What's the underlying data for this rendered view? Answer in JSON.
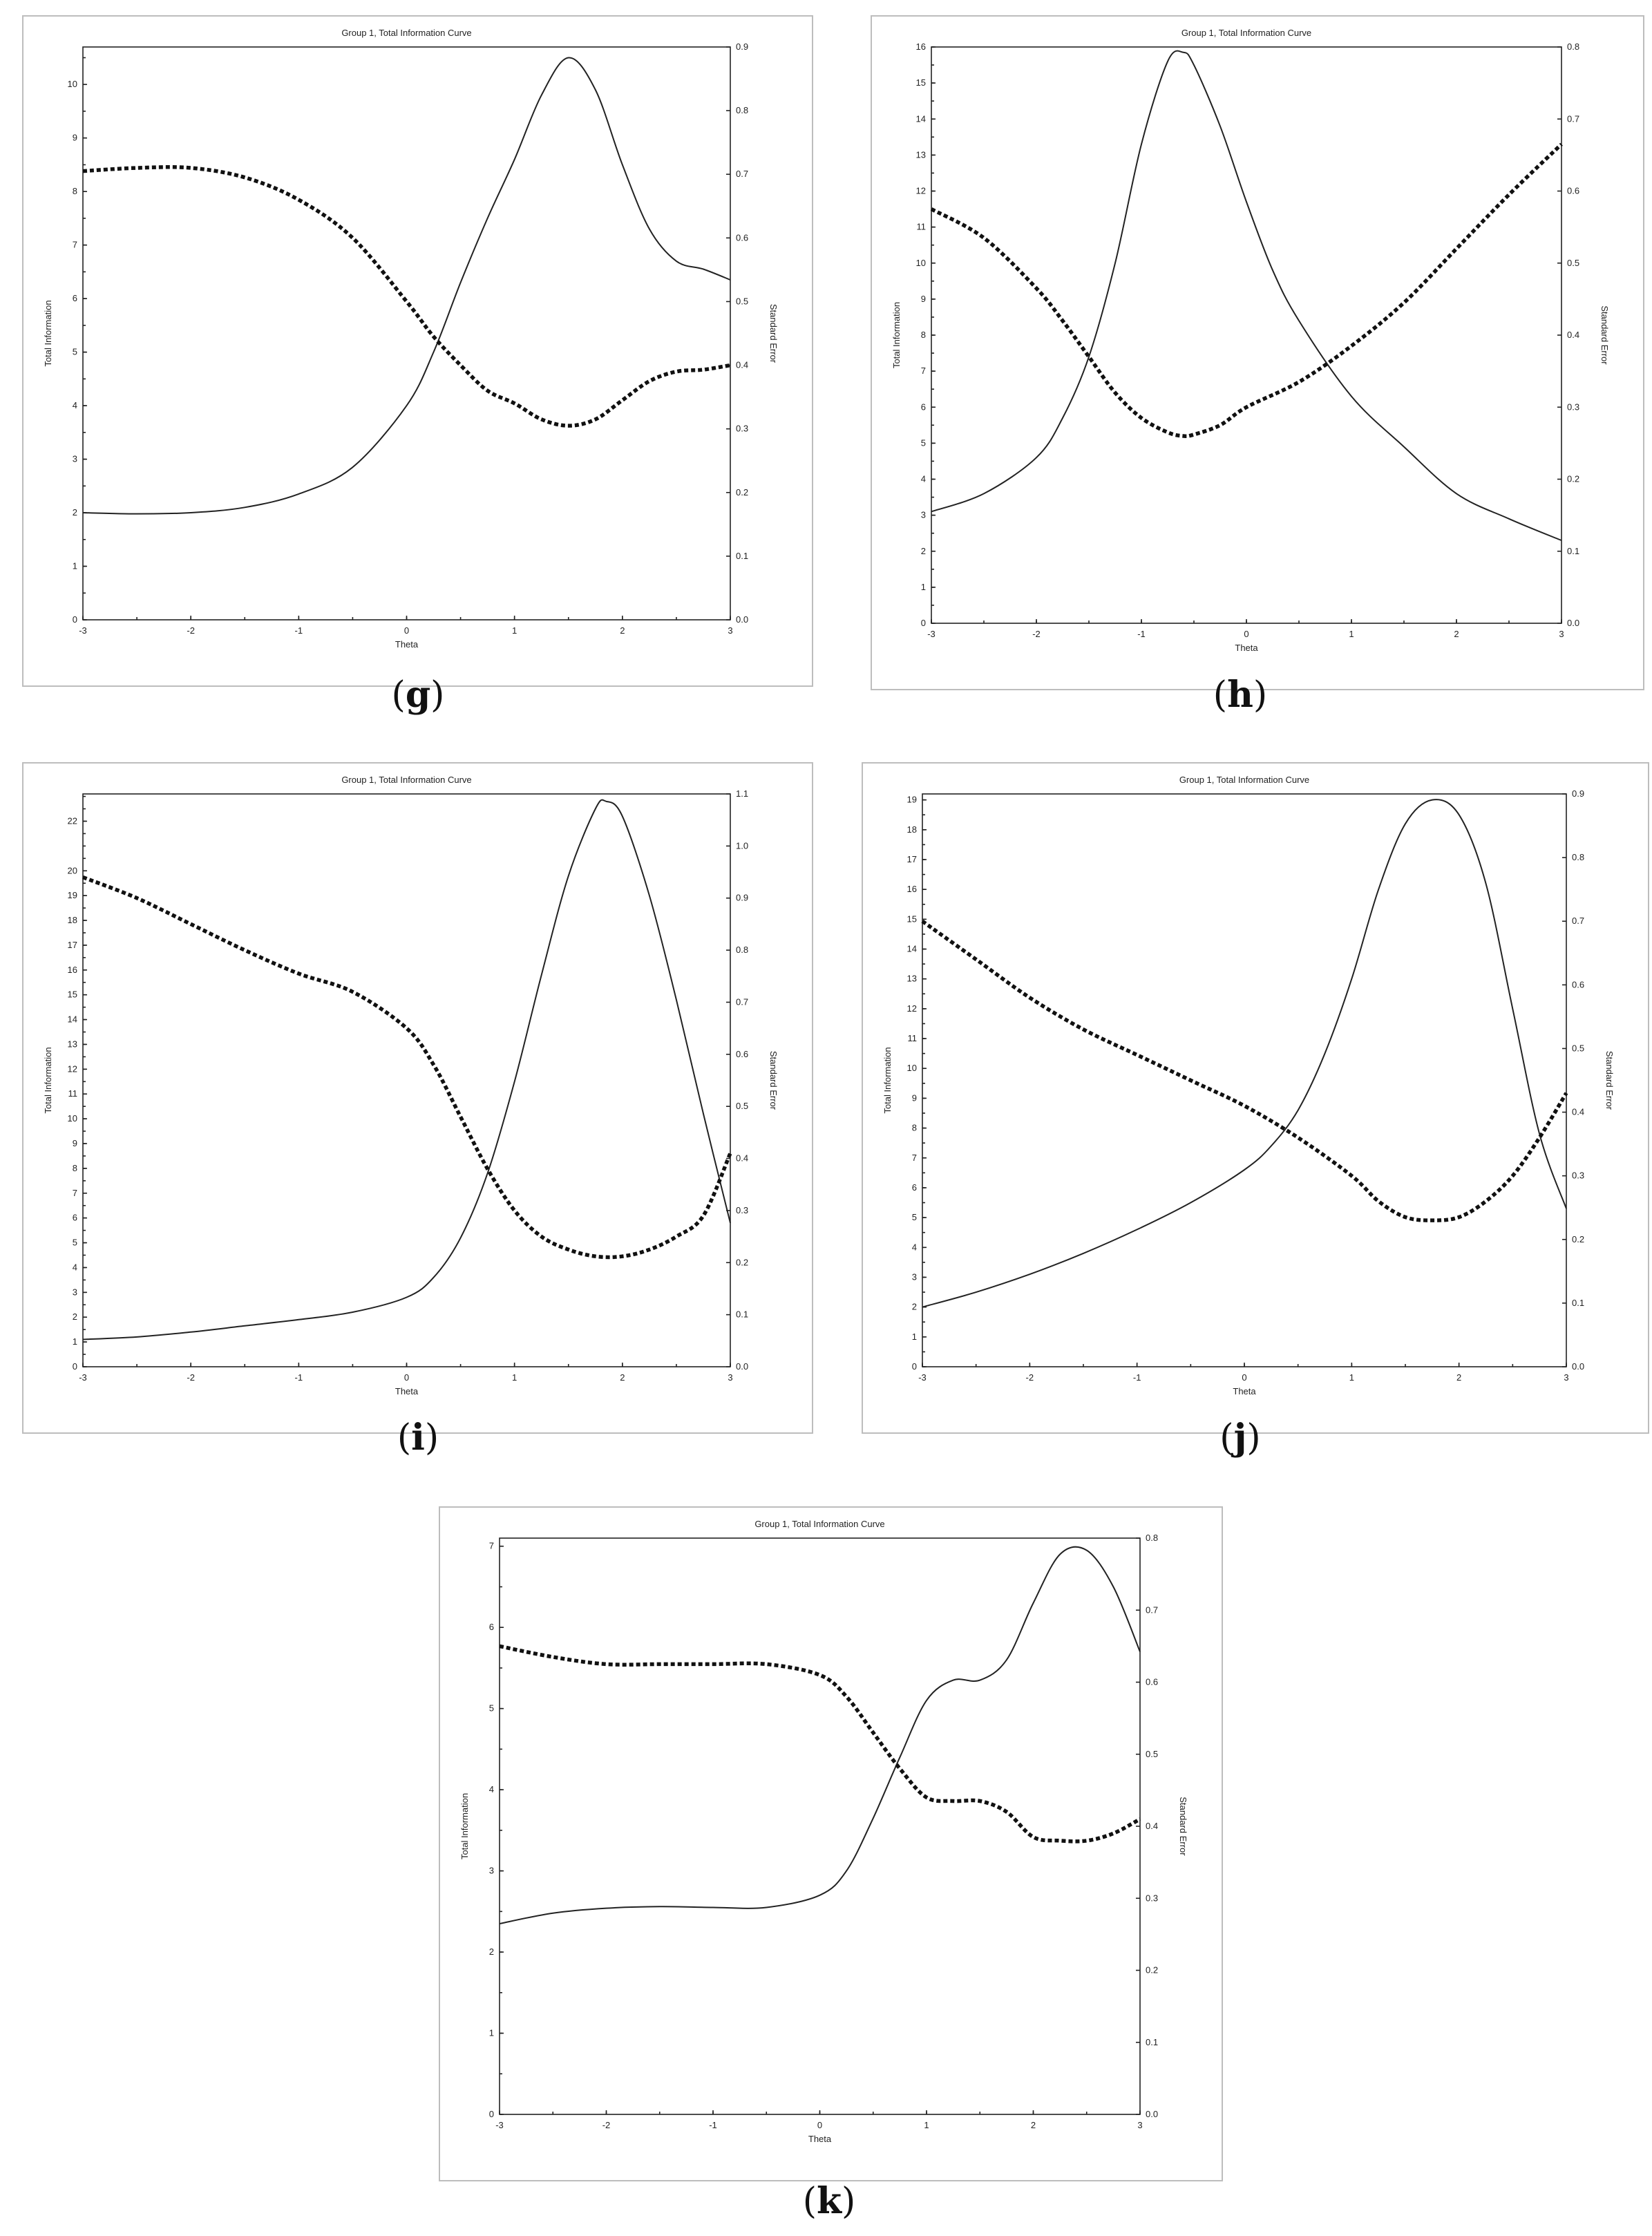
{
  "panels": [
    {
      "id": "g",
      "label": "g",
      "chart_data": {
        "type": "line",
        "title": "Group 1, Total Information Curve",
        "xlabel": "Theta",
        "ylabel": "Total Information",
        "y2label": "Standard Error",
        "xlim": [
          -3,
          3
        ],
        "ylim": [
          0,
          10.7
        ],
        "y2lim": [
          0,
          0.9
        ],
        "xticks": [
          -3,
          -2,
          -1,
          0,
          1,
          2,
          3
        ],
        "yticks": [
          0,
          1,
          2,
          3,
          4,
          5,
          6,
          7,
          8,
          9,
          10
        ],
        "y2ticks": [
          "0.0",
          "0.1",
          "0.2",
          "0.3",
          "0.4",
          "0.5",
          "0.6",
          "0.7",
          "0.8",
          "0.9"
        ],
        "series": [
          {
            "axis": "left",
            "style": "solid",
            "x": [
              -3,
              -2.5,
              -2,
              -1.5,
              -1,
              -0.5,
              0,
              0.25,
              0.5,
              0.75,
              1,
              1.25,
              1.5,
              1.75,
              2,
              2.25,
              2.5,
              2.75,
              3
            ],
            "values": [
              2.0,
              1.98,
              2.0,
              2.1,
              2.35,
              2.85,
              4.0,
              5.0,
              6.3,
              7.5,
              8.6,
              9.8,
              10.5,
              9.9,
              8.5,
              7.3,
              6.7,
              6.55,
              6.35
            ]
          },
          {
            "axis": "right",
            "style": "dotted",
            "x": [
              -3,
              -2.5,
              -2,
              -1.5,
              -1,
              -0.5,
              0,
              0.25,
              0.5,
              0.75,
              1,
              1.25,
              1.5,
              1.75,
              2,
              2.25,
              2.5,
              2.75,
              3
            ],
            "values": [
              0.705,
              0.71,
              0.71,
              0.695,
              0.66,
              0.6,
              0.5,
              0.445,
              0.4,
              0.36,
              0.34,
              0.315,
              0.305,
              0.315,
              0.345,
              0.375,
              0.39,
              0.393,
              0.4
            ]
          }
        ]
      }
    },
    {
      "id": "h",
      "label": "h",
      "chart_data": {
        "type": "line",
        "title": "Group 1, Total Information Curve",
        "xlabel": "Theta",
        "ylabel": "Total Information",
        "y2label": "Standard Error",
        "xlim": [
          -3,
          3
        ],
        "ylim": [
          0,
          16
        ],
        "y2lim": [
          0,
          0.8
        ],
        "xticks": [
          -3,
          -2,
          -1,
          0,
          1,
          2,
          3
        ],
        "yticks": [
          0,
          1,
          2,
          3,
          4,
          5,
          6,
          7,
          8,
          9,
          10,
          11,
          12,
          13,
          14,
          15,
          16
        ],
        "y2ticks": [
          "0.0",
          "0.1",
          "0.2",
          "0.3",
          "0.4",
          "0.5",
          "0.6",
          "0.7",
          "0.8"
        ],
        "series": [
          {
            "axis": "left",
            "style": "solid",
            "x": [
              -3,
              -2.5,
              -2,
              -1.75,
              -1.5,
              -1.25,
              -1,
              -0.75,
              -0.6,
              -0.5,
              -0.25,
              0,
              0.25,
              0.5,
              1,
              1.5,
              2,
              2.5,
              3
            ],
            "values": [
              3.1,
              3.6,
              4.6,
              5.7,
              7.4,
              10.0,
              13.3,
              15.6,
              15.85,
              15.5,
              13.8,
              11.7,
              9.8,
              8.4,
              6.3,
              4.9,
              3.6,
              2.9,
              2.3
            ]
          },
          {
            "axis": "right",
            "style": "dotted",
            "x": [
              -3,
              -2.5,
              -2,
              -1.75,
              -1.5,
              -1.25,
              -1,
              -0.75,
              -0.6,
              -0.5,
              -0.25,
              0,
              0.5,
              1,
              1.5,
              2,
              2.5,
              3
            ],
            "values": [
              0.575,
              0.535,
              0.465,
              0.42,
              0.37,
              0.32,
              0.285,
              0.265,
              0.26,
              0.262,
              0.275,
              0.3,
              0.335,
              0.385,
              0.445,
              0.52,
              0.595,
              0.665
            ]
          }
        ]
      }
    },
    {
      "id": "i",
      "label": "i",
      "chart_data": {
        "type": "line",
        "title": "Group 1, Total Information Curve",
        "xlabel": "Theta",
        "ylabel": "Total Information",
        "y2label": "Standard Error",
        "xlim": [
          -3,
          3
        ],
        "ylim": [
          0,
          23.1
        ],
        "y2lim": [
          0,
          1.1
        ],
        "xticks": [
          -3,
          -2,
          -1,
          0,
          1,
          2,
          3
        ],
        "yticks": [
          0,
          1,
          2,
          3,
          4,
          5,
          6,
          7,
          8,
          9,
          10,
          11,
          12,
          13,
          14,
          15,
          16,
          17,
          18,
          19,
          20,
          22
        ],
        "y2ticks": [
          "0.0",
          "0.1",
          "0.2",
          "0.3",
          "0.4",
          "0.5",
          "0.6",
          "0.7",
          "0.8",
          "0.9",
          "1.0",
          "1.1"
        ],
        "series": [
          {
            "axis": "left",
            "style": "solid",
            "x": [
              -3,
              -2.5,
              -2,
              -1.5,
              -1,
              -0.5,
              0,
              0.25,
              0.5,
              0.75,
              1,
              1.25,
              1.5,
              1.75,
              1.85,
              2,
              2.25,
              2.5,
              2.75,
              3
            ],
            "values": [
              1.1,
              1.2,
              1.4,
              1.65,
              1.9,
              2.2,
              2.8,
              3.6,
              5.2,
              7.8,
              11.5,
              15.8,
              19.8,
              22.5,
              22.8,
              22.2,
              19.0,
              14.8,
              10.2,
              5.8
            ]
          },
          {
            "axis": "right",
            "style": "dotted",
            "x": [
              -3,
              -2.5,
              -2,
              -1.5,
              -1,
              -0.5,
              0,
              0.25,
              0.5,
              0.75,
              1,
              1.25,
              1.5,
              1.75,
              2,
              2.25,
              2.5,
              2.75,
              3
            ],
            "values": [
              0.94,
              0.9,
              0.85,
              0.8,
              0.755,
              0.72,
              0.65,
              0.58,
              0.48,
              0.38,
              0.3,
              0.25,
              0.225,
              0.212,
              0.212,
              0.225,
              0.25,
              0.29,
              0.41
            ]
          }
        ]
      }
    },
    {
      "id": "j",
      "label": "j",
      "chart_data": {
        "type": "line",
        "title": "Group 1, Total Information Curve",
        "xlabel": "Theta",
        "ylabel": "Total Information",
        "y2label": "Standard Error",
        "xlim": [
          -3,
          3
        ],
        "ylim": [
          0,
          19.2
        ],
        "y2lim": [
          0,
          0.9
        ],
        "xticks": [
          -3,
          -2,
          -1,
          0,
          1,
          2,
          3
        ],
        "yticks": [
          0,
          1,
          2,
          3,
          4,
          5,
          6,
          7,
          8,
          9,
          10,
          11,
          12,
          13,
          14,
          15,
          16,
          17,
          18,
          19
        ],
        "y2ticks": [
          "0.0",
          "0.1",
          "0.2",
          "0.3",
          "0.4",
          "0.5",
          "0.6",
          "0.7",
          "0.8",
          "0.9"
        ],
        "series": [
          {
            "axis": "left",
            "style": "solid",
            "x": [
              -3,
              -2.5,
              -2,
              -1.5,
              -1,
              -0.5,
              0,
              0.25,
              0.5,
              0.75,
              1,
              1.25,
              1.5,
              1.75,
              2,
              2.25,
              2.5,
              2.75,
              3
            ],
            "values": [
              2.0,
              2.5,
              3.1,
              3.8,
              4.6,
              5.5,
              6.6,
              7.4,
              8.6,
              10.5,
              13.0,
              16.0,
              18.2,
              19.0,
              18.5,
              16.2,
              12.0,
              7.8,
              5.3
            ]
          },
          {
            "axis": "right",
            "style": "dotted",
            "x": [
              -3,
              -2.5,
              -2,
              -1.5,
              -1,
              -0.5,
              0,
              0.5,
              1,
              1.25,
              1.5,
              1.75,
              2,
              2.25,
              2.5,
              2.75,
              3
            ],
            "values": [
              0.7,
              0.64,
              0.58,
              0.53,
              0.49,
              0.45,
              0.41,
              0.36,
              0.3,
              0.26,
              0.235,
              0.23,
              0.235,
              0.26,
              0.3,
              0.36,
              0.43
            ]
          }
        ]
      }
    },
    {
      "id": "k",
      "label": "k",
      "chart_data": {
        "type": "line",
        "title": "Group 1, Total Information Curve",
        "xlabel": "Theta",
        "ylabel": "Total Information",
        "y2label": "Standard Error",
        "xlim": [
          -3,
          3
        ],
        "ylim": [
          0,
          7.1
        ],
        "y2lim": [
          0,
          0.8
        ],
        "xticks": [
          -3,
          -2,
          -1,
          0,
          1,
          2,
          3
        ],
        "yticks": [
          0,
          1,
          2,
          3,
          4,
          5,
          6,
          7
        ],
        "y2ticks": [
          "0.0",
          "0.1",
          "0.2",
          "0.3",
          "0.4",
          "0.5",
          "0.6",
          "0.7",
          "0.8"
        ],
        "series": [
          {
            "axis": "left",
            "style": "solid",
            "x": [
              -3,
              -2.5,
              -2,
              -1.5,
              -1,
              -0.5,
              0,
              0.25,
              0.5,
              0.75,
              1,
              1.25,
              1.5,
              1.75,
              2,
              2.25,
              2.5,
              2.75,
              3
            ],
            "values": [
              2.35,
              2.48,
              2.54,
              2.56,
              2.55,
              2.55,
              2.7,
              3.0,
              3.65,
              4.4,
              5.1,
              5.35,
              5.35,
              5.6,
              6.3,
              6.9,
              6.95,
              6.5,
              5.7
            ]
          },
          {
            "axis": "right",
            "style": "dotted",
            "x": [
              -3,
              -2.5,
              -2,
              -1.5,
              -1,
              -0.5,
              0,
              0.25,
              0.5,
              0.75,
              1,
              1.25,
              1.5,
              1.75,
              2,
              2.25,
              2.5,
              2.75,
              3
            ],
            "values": [
              0.65,
              0.635,
              0.625,
              0.625,
              0.625,
              0.625,
              0.61,
              0.58,
              0.53,
              0.48,
              0.44,
              0.435,
              0.435,
              0.42,
              0.385,
              0.38,
              0.38,
              0.39,
              0.41
            ]
          }
        ]
      }
    }
  ]
}
